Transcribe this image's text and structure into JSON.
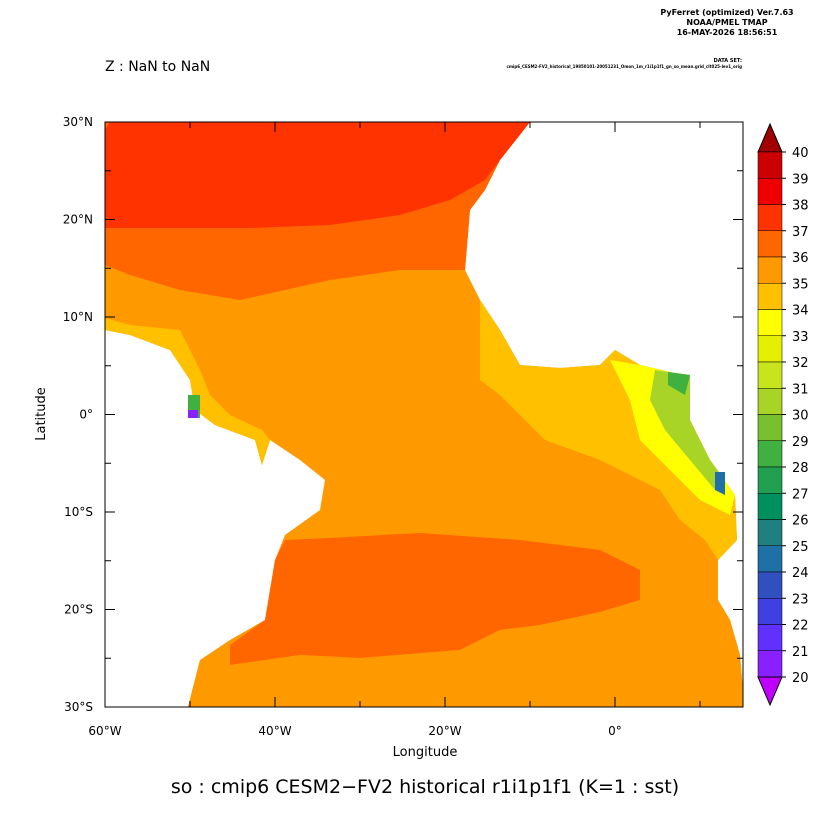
{
  "header": {
    "software": "PyFerret (optimized) Ver.7.63",
    "org": "NOAA/PMEL TMAP",
    "date": "16-MAY-2026 18:56:51",
    "dataset_label": "DATA SET:",
    "dataset": "cmip6_CESM2-FV2_historical_19850101-20051231_Omon_1m_r1i1p1f1_gn_so_mean.grid_clt025-lev1_orig",
    "z_range": "Z : NaN to NaN"
  },
  "plot": {
    "x_label": "Longitude",
    "y_label": "Latitude",
    "x_ticks": [
      "60°W",
      "40°W",
      "20°W",
      "0°"
    ],
    "y_ticks": [
      "30°N",
      "20°N",
      "10°N",
      "0°",
      "10°S",
      "20°S",
      "30°S"
    ]
  },
  "colorbar": {
    "levels": [
      40,
      39,
      38,
      37,
      36,
      35,
      34,
      33,
      32,
      31,
      30,
      29,
      28,
      27,
      26,
      25,
      24,
      23,
      22,
      21,
      20
    ],
    "over_color": "#a00000",
    "colors": [
      "#cc0000",
      "#ee0000",
      "#ff3300",
      "#ff6600",
      "#ff9900",
      "#ffc000",
      "#ffff00",
      "#e4f000",
      "#c8e41c",
      "#a8d428",
      "#78c030",
      "#40b040",
      "#20a050",
      "#009060",
      "#208080",
      "#2070a8",
      "#3050c0",
      "#4040e0",
      "#6030ff",
      "#8820ff"
    ],
    "under_color": "#c000ff"
  },
  "caption": "so : cmip6 CESM2−FV2 historical r1i1p1f1   (K=1 : sst)"
}
